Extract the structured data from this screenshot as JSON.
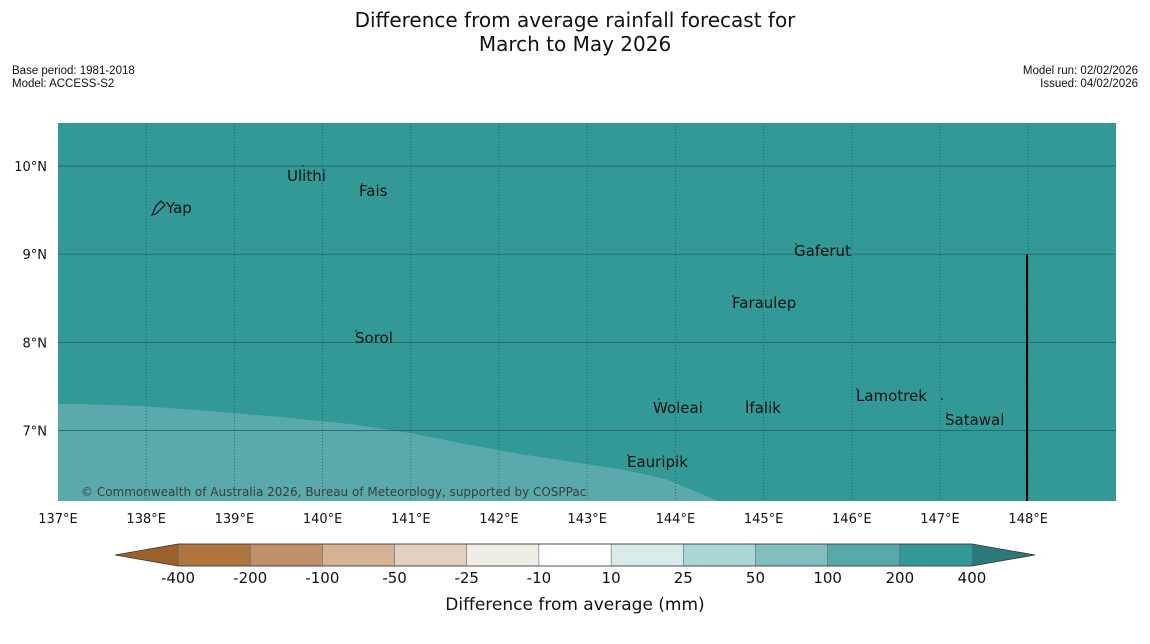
{
  "header": {
    "title_line1": "Difference from average rainfall forecast for",
    "title_line2": "March to May 2026",
    "base_period": "Base period: 1981-2018",
    "model": "Model: ACCESS-S2",
    "model_run": "Model run: 02/02/2026",
    "issued": "Issued: 04/02/2026"
  },
  "map": {
    "colors": {
      "high": "#339997",
      "medium": "#5aaaab",
      "grid": "#1f5e5e",
      "border": "#000000"
    },
    "lon_labels": [
      "137°E",
      "138°E",
      "139°E",
      "140°E",
      "141°E",
      "142°E",
      "143°E",
      "144°E",
      "145°E",
      "146°E",
      "147°E",
      "148°E"
    ],
    "lat_labels": [
      "10°N",
      "9°N",
      "8°N",
      "7°N"
    ],
    "places": [
      {
        "name": "Yap"
      },
      {
        "name": "Ulithi"
      },
      {
        "name": "Fais"
      },
      {
        "name": "Gaferut"
      },
      {
        "name": "Faraulep"
      },
      {
        "name": "Sorol"
      },
      {
        "name": "Lamotrek"
      },
      {
        "name": "Woleai"
      },
      {
        "name": "Ifalik"
      },
      {
        "name": "Satawal"
      },
      {
        "name": "Eauripik"
      }
    ],
    "credit": "© Commonwealth of Australia 2026, Bureau of Meteorology, supported by COSPPac"
  },
  "colorbar": {
    "title": "Difference from average (mm)",
    "ticks": [
      "-400",
      "-200",
      "-100",
      "-50",
      "-25",
      "-10",
      "10",
      "25",
      "50",
      "100",
      "200",
      "400"
    ],
    "colors": [
      "#b07440",
      "#c09068",
      "#d5b293",
      "#e4d0c0",
      "#f0ece6",
      "#ffffff",
      "#d6ebea",
      "#abd6d6",
      "#80bfbe",
      "#57a8a8",
      "#339997"
    ],
    "under_color": "#9c622e",
    "over_color": "#2a7a7a"
  }
}
